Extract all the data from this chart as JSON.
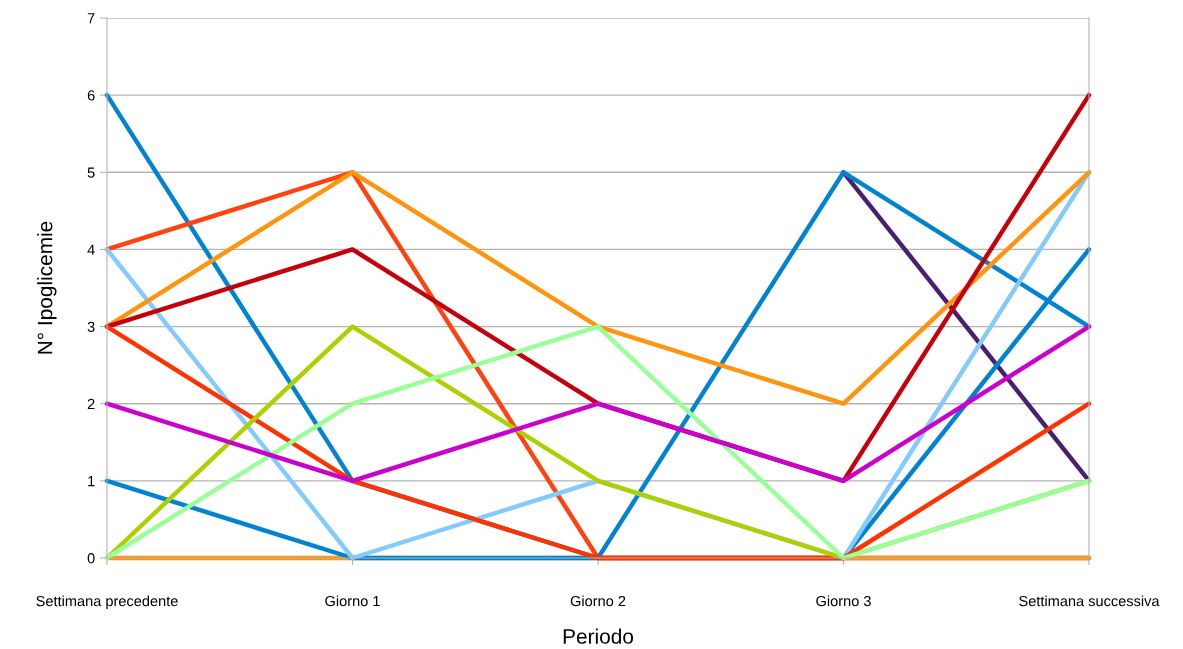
{
  "chart_data": {
    "type": "line",
    "xlabel": "Periodo",
    "ylabel": "N° Ipoglicemie",
    "categories": [
      "Settimana precedente",
      "Giorno 1",
      "Giorno 2",
      "Giorno 3",
      "Settimana successiva"
    ],
    "ylim": [
      0,
      7
    ],
    "yticks": [
      0,
      1,
      2,
      3,
      4,
      5,
      6,
      7
    ],
    "grid": "y",
    "marker": "none",
    "line_style": "solid",
    "series": [
      {
        "color": "#4b1f6f",
        "values": [
          null,
          null,
          null,
          5,
          1
        ]
      },
      {
        "color": "#0084d1",
        "values": [
          6,
          1,
          0,
          0,
          4
        ]
      },
      {
        "color": "#ff420e",
        "values": [
          4,
          5,
          0,
          0,
          0
        ]
      },
      {
        "color": "#ff950e",
        "values": [
          0,
          0,
          0,
          0,
          0
        ]
      },
      {
        "color": "#0084d1",
        "values": [
          1,
          0,
          0,
          5,
          3
        ]
      },
      {
        "color": "#83caff",
        "values": [
          4,
          0,
          1,
          0,
          5
        ]
      },
      {
        "color": "#ff950e",
        "values": [
          3,
          5,
          3,
          2,
          5
        ]
      },
      {
        "color": "#c5000b",
        "values": [
          3,
          4,
          2,
          1,
          6
        ]
      },
      {
        "color": "#ff3300",
        "values": [
          3,
          1,
          0,
          0,
          2
        ]
      },
      {
        "color": "#aecf00",
        "values": [
          0,
          3,
          1,
          0,
          1
        ]
      },
      {
        "color": "#99ff99",
        "values": [
          0,
          2,
          3,
          0,
          1
        ]
      },
      {
        "color": "#cc00cc",
        "values": [
          2,
          1,
          2,
          1,
          3
        ]
      }
    ]
  }
}
